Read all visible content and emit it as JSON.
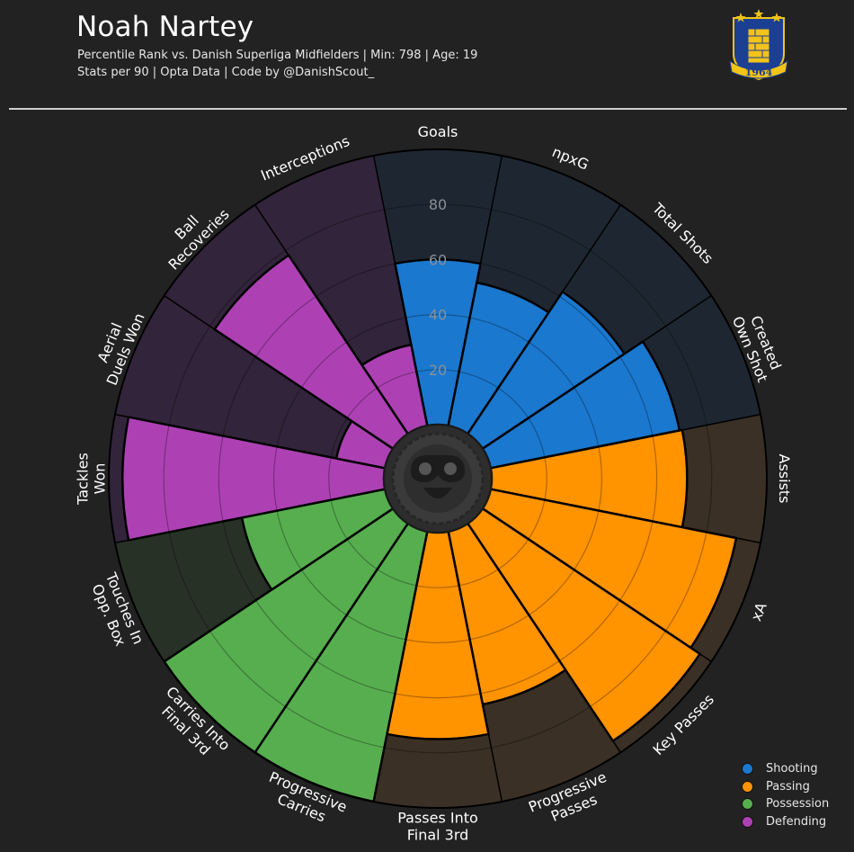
{
  "header": {
    "title": "Noah Nartey",
    "subtitle_line1": "Percentile Rank vs. Danish Superliga Midfielders | Min: 798 | Age: 19",
    "subtitle_line2": "Stats per 90 | Opta Data | Code by @DanishScout_",
    "logo_year": "1964"
  },
  "colors": {
    "background": "#222222",
    "Shooting": "#1a78cf",
    "Passing": "#ff9300",
    "Possession": "#57ae4f",
    "Defending": "#ad41b4",
    "Shooting_bg": "#1e2731",
    "Passing_bg": "#3a3025",
    "Possession_bg": "#273126",
    "Defending_bg": "#32243a"
  },
  "legend": [
    {
      "label": "Shooting",
      "color": "#1a78cf"
    },
    {
      "label": "Passing",
      "color": "#ff9300"
    },
    {
      "label": "Possession",
      "color": "#57ae4f"
    },
    {
      "label": "Defending",
      "color": "#ad41b4"
    }
  ],
  "chart_data": {
    "type": "polar-bar",
    "title": "Noah Nartey",
    "r_ticks": [
      20,
      40,
      60,
      80
    ],
    "rlim": [
      0,
      100
    ],
    "categories": [
      {
        "label": [
          "Goals"
        ],
        "group": "Shooting",
        "value": 60
      },
      {
        "label": [
          "npxG"
        ],
        "group": "Shooting",
        "value": 53
      },
      {
        "label": [
          "Total Shots"
        ],
        "group": "Shooting",
        "value": 62
      },
      {
        "label": [
          "Created",
          "Own Shot"
        ],
        "group": "Shooting",
        "value": 70
      },
      {
        "label": [
          "Assists"
        ],
        "group": "Passing",
        "value": 71
      },
      {
        "label": [
          "xA"
        ],
        "group": "Passing",
        "value": 91
      },
      {
        "label": [
          "Key Passes"
        ],
        "group": "Passing",
        "value": 95
      },
      {
        "label": [
          "Progressive",
          "Passes"
        ],
        "group": "Passing",
        "value": 64
      },
      {
        "label": [
          "Passes Into",
          "Final 3rd"
        ],
        "group": "Passing",
        "value": 75
      },
      {
        "label": [
          "Progressive",
          "Carries"
        ],
        "group": "Possession",
        "value": 100
      },
      {
        "label": [
          "Carries Into",
          "Final 3rd"
        ],
        "group": "Possession",
        "value": 100
      },
      {
        "label": [
          "Touches In",
          "Opp. Box"
        ],
        "group": "Possession",
        "value": 53
      },
      {
        "label": [
          "Tackles",
          "Won"
        ],
        "group": "Defending",
        "value": 95
      },
      {
        "label": [
          "Aerial",
          "Duels Won"
        ],
        "group": "Defending",
        "value": 18
      },
      {
        "label": [
          "Ball",
          "Recoveries"
        ],
        "group": "Defending",
        "value": 78
      },
      {
        "label": [
          "Interceptions"
        ],
        "group": "Defending",
        "value": 30
      }
    ]
  }
}
